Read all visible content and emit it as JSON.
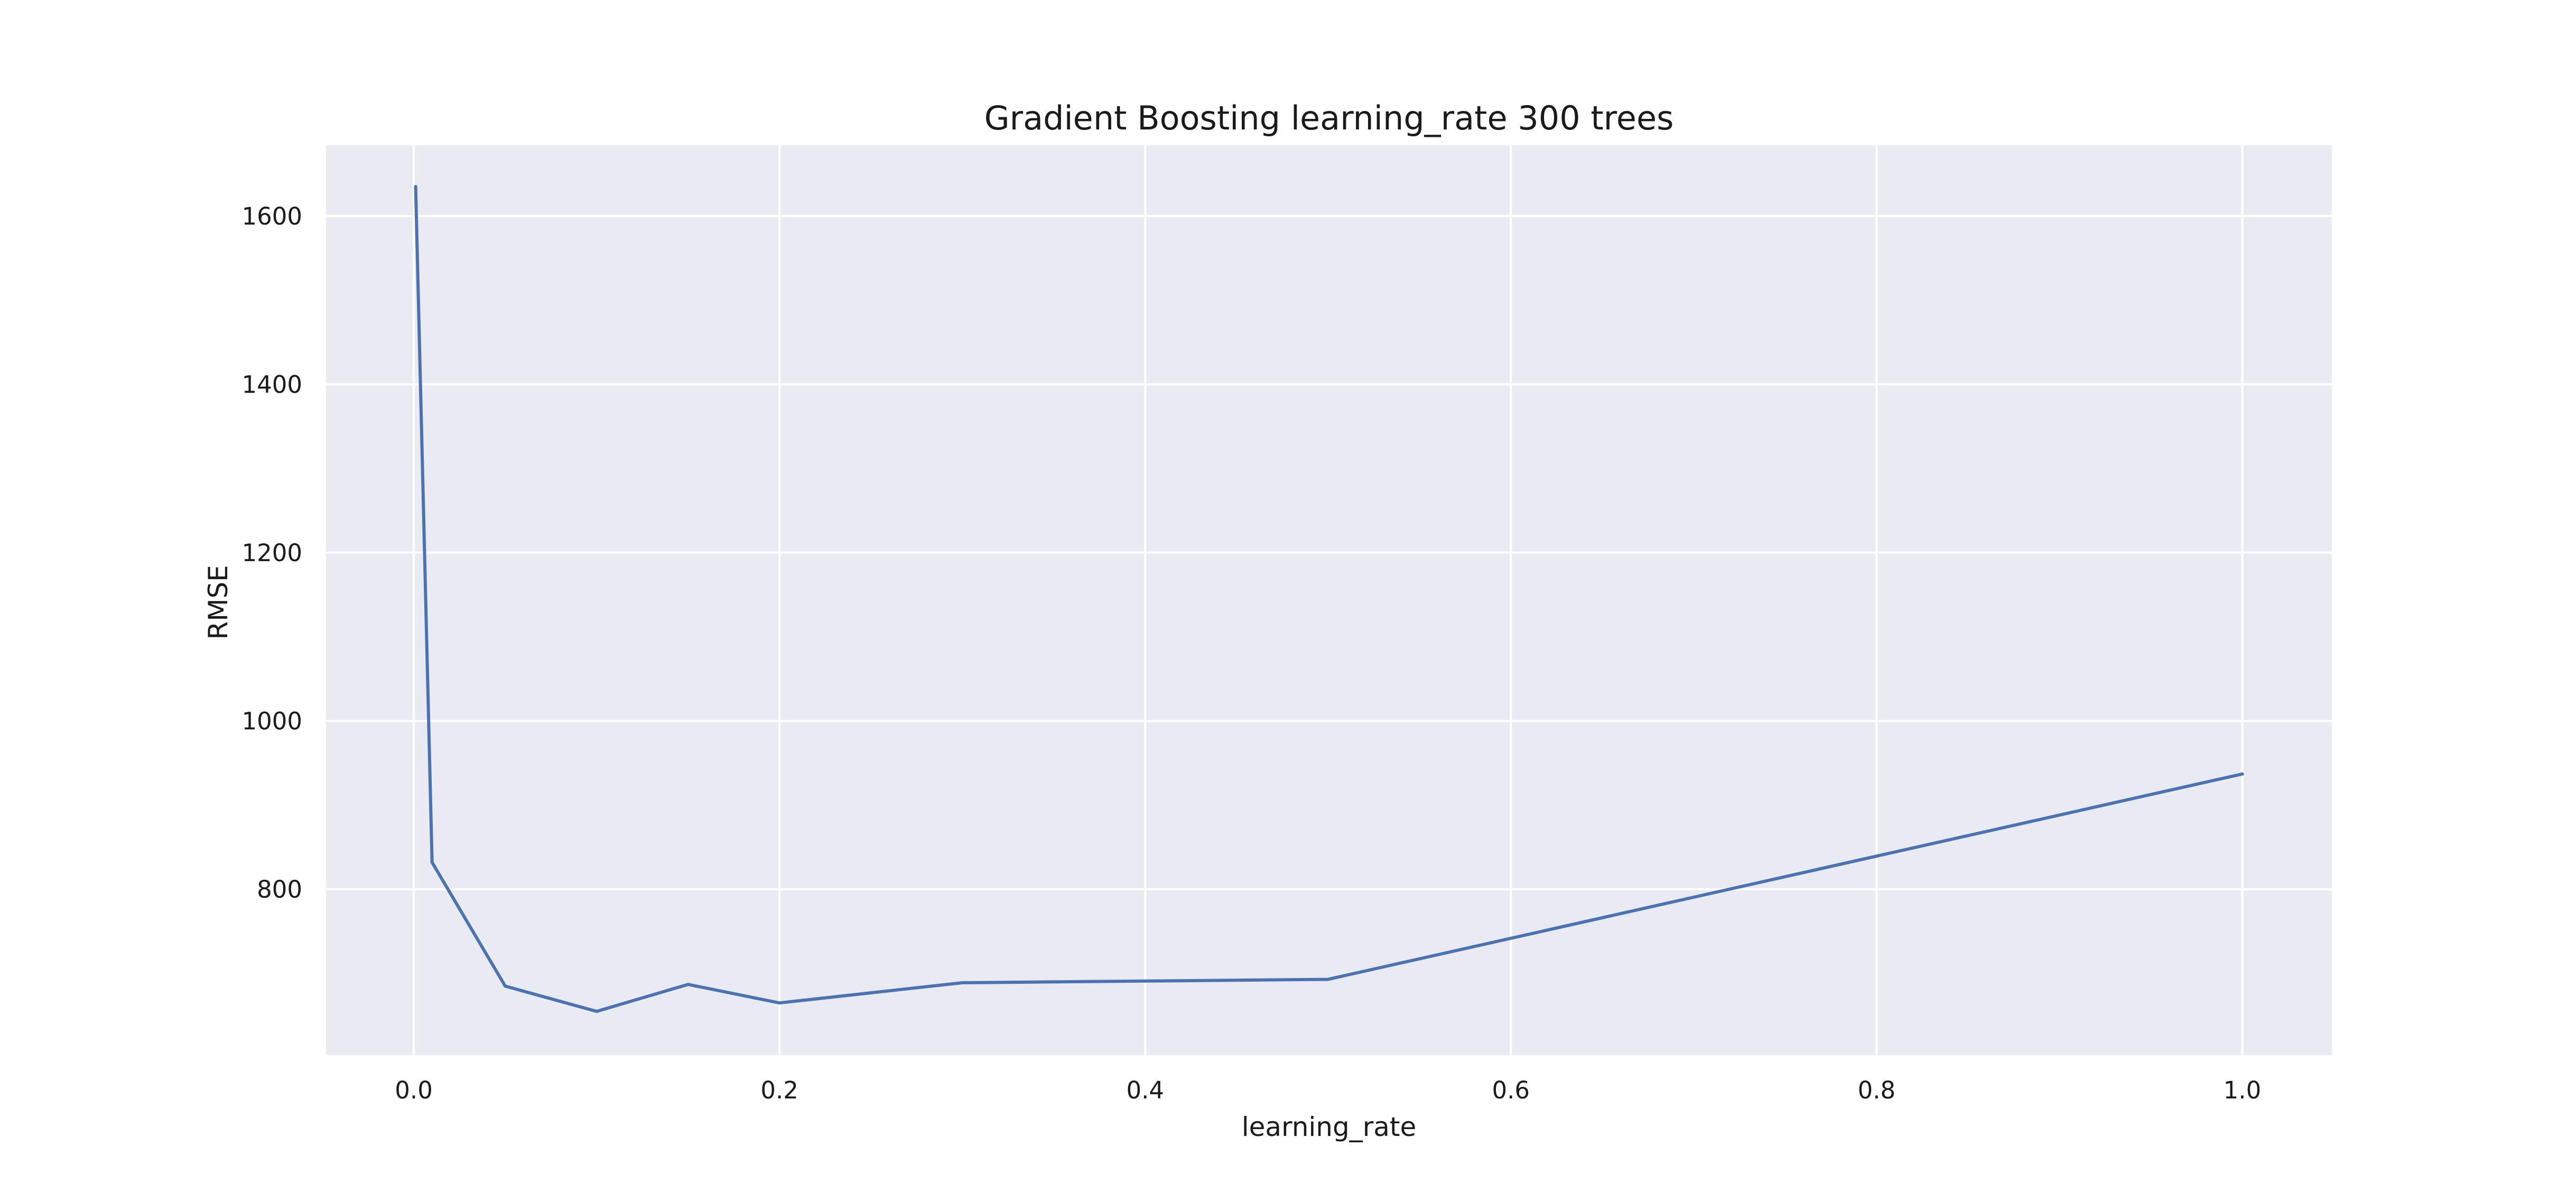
{
  "chart_data": {
    "type": "line",
    "title": "Gradient Boosting learning_rate 300 trees",
    "xlabel": "learning_rate",
    "ylabel": "RMSE",
    "xlim": [
      -0.048,
      1.049
    ],
    "ylim": [
      603,
      1684
    ],
    "x_ticks": [
      0.0,
      0.2,
      0.4,
      0.6,
      0.8,
      1.0
    ],
    "x_tick_labels": [
      "0.0",
      "0.2",
      "0.4",
      "0.6",
      "0.8",
      "1.0"
    ],
    "y_ticks": [
      800,
      1000,
      1200,
      1400,
      1600
    ],
    "y_tick_labels": [
      "800",
      "1000",
      "1200",
      "1400",
      "1600"
    ],
    "grid": true,
    "style": {
      "background": "#ffffff",
      "plot_background": "#eaeaf2",
      "grid_color": "#ffffff",
      "line_color": "#4c72b0"
    },
    "series": [
      {
        "x": [
          0.001,
          0.01,
          0.05,
          0.1,
          0.15,
          0.2,
          0.3,
          0.5,
          1.0
        ],
        "y": [
          1635,
          832,
          685,
          655,
          687,
          665,
          689,
          693,
          937
        ]
      }
    ]
  }
}
